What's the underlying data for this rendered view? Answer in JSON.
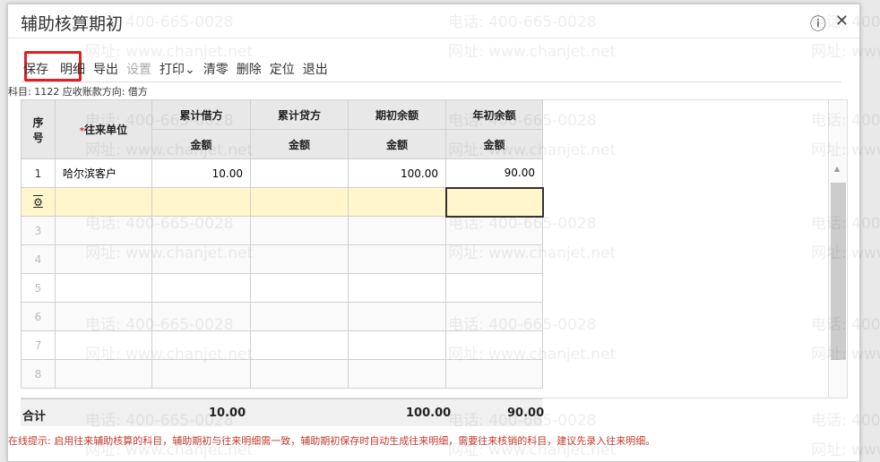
{
  "dialog": {
    "title": "辅助核算期初",
    "help_icon": "question-circle-icon",
    "close_icon": "close-icon"
  },
  "toolbar": {
    "save": "保存",
    "detail": "明细",
    "export": "导出",
    "settings": "设置",
    "print": "打印",
    "print_caret": "⌄",
    "clear": "清零",
    "delete": "删除",
    "locate": "定位",
    "exit": "退出"
  },
  "subject": "科目: 1122 应收账款方向: 借方",
  "table": {
    "headers": {
      "index": "序号",
      "required_mark": "*",
      "unit": "往来单位",
      "debit": "累计借方",
      "credit": "累计贷方",
      "opening": "期初余额",
      "year_opening": "年初余额",
      "amount": "金额"
    },
    "rows": [
      {
        "index": "1",
        "unit": "哈尔滨客户",
        "debit": "10.00",
        "credit": "",
        "opening": "100.00",
        "year_opening": "90.00"
      },
      {
        "index": "",
        "unit": "",
        "debit": "",
        "credit": "",
        "opening": "",
        "year_opening": ""
      },
      {
        "index": "3"
      },
      {
        "index": "4"
      },
      {
        "index": "5"
      },
      {
        "index": "6"
      },
      {
        "index": "7"
      },
      {
        "index": "8"
      }
    ],
    "totals": {
      "label": "合计",
      "debit": "10.00",
      "opening": "100.00",
      "year_opening": "90.00"
    }
  },
  "hint": "在线提示: 启用往来辅助核算的科目，辅助期初与往来明细需一致，辅助期初保存时自动生成往来明细，需要往来核销的科目，建议先录入往来明细。",
  "watermark": {
    "phone": "电话: 400-665-0028",
    "site": "网址: www.chanjet.net"
  },
  "colors": {
    "accent_red": "#e02020",
    "selected_row": "#fff6cc",
    "hint": "#c0392b"
  }
}
